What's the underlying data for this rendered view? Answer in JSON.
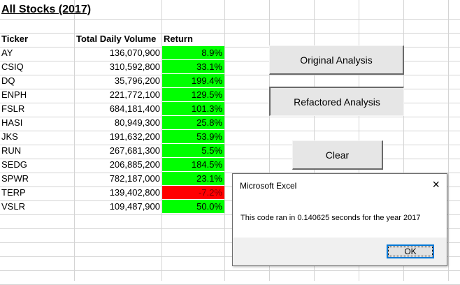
{
  "sheet": {
    "title": "All Stocks (2017)",
    "headers": {
      "ticker": "Ticker",
      "volume": "Total Daily Volume",
      "return": "Return"
    },
    "rows": [
      {
        "ticker": "AY",
        "volume": "136,070,900",
        "return": "8.9%",
        "status": "positive"
      },
      {
        "ticker": "CSIQ",
        "volume": "310,592,800",
        "return": "33.1%",
        "status": "positive"
      },
      {
        "ticker": "DQ",
        "volume": "35,796,200",
        "return": "199.4%",
        "status": "positive"
      },
      {
        "ticker": "ENPH",
        "volume": "221,772,100",
        "return": "129.5%",
        "status": "positive"
      },
      {
        "ticker": "FSLR",
        "volume": "684,181,400",
        "return": "101.3%",
        "status": "positive"
      },
      {
        "ticker": "HASI",
        "volume": "80,949,300",
        "return": "25.8%",
        "status": "positive"
      },
      {
        "ticker": "JKS",
        "volume": "191,632,200",
        "return": "53.9%",
        "status": "positive"
      },
      {
        "ticker": "RUN",
        "volume": "267,681,300",
        "return": "5.5%",
        "status": "positive"
      },
      {
        "ticker": "SEDG",
        "volume": "206,885,200",
        "return": "184.5%",
        "status": "positive"
      },
      {
        "ticker": "SPWR",
        "volume": "782,187,000",
        "return": "23.1%",
        "status": "positive"
      },
      {
        "ticker": "TERP",
        "volume": "139,402,800",
        "return": "-7.2%",
        "status": "negative"
      },
      {
        "ticker": "VSLR",
        "volume": "109,487,900",
        "return": "50.0%",
        "status": "positive"
      }
    ]
  },
  "buttons": {
    "original": "Original Analysis",
    "refactored": "Refactored Analysis",
    "clear": "Clear"
  },
  "dialog": {
    "title": "Microsoft Excel",
    "close_icon": "×",
    "message": "This code ran in 0.140625 seconds for the year 2017",
    "ok_label": "OK"
  },
  "colors": {
    "positive": "#00ff00",
    "negative": "#ff0000",
    "accent": "#0078d7"
  }
}
